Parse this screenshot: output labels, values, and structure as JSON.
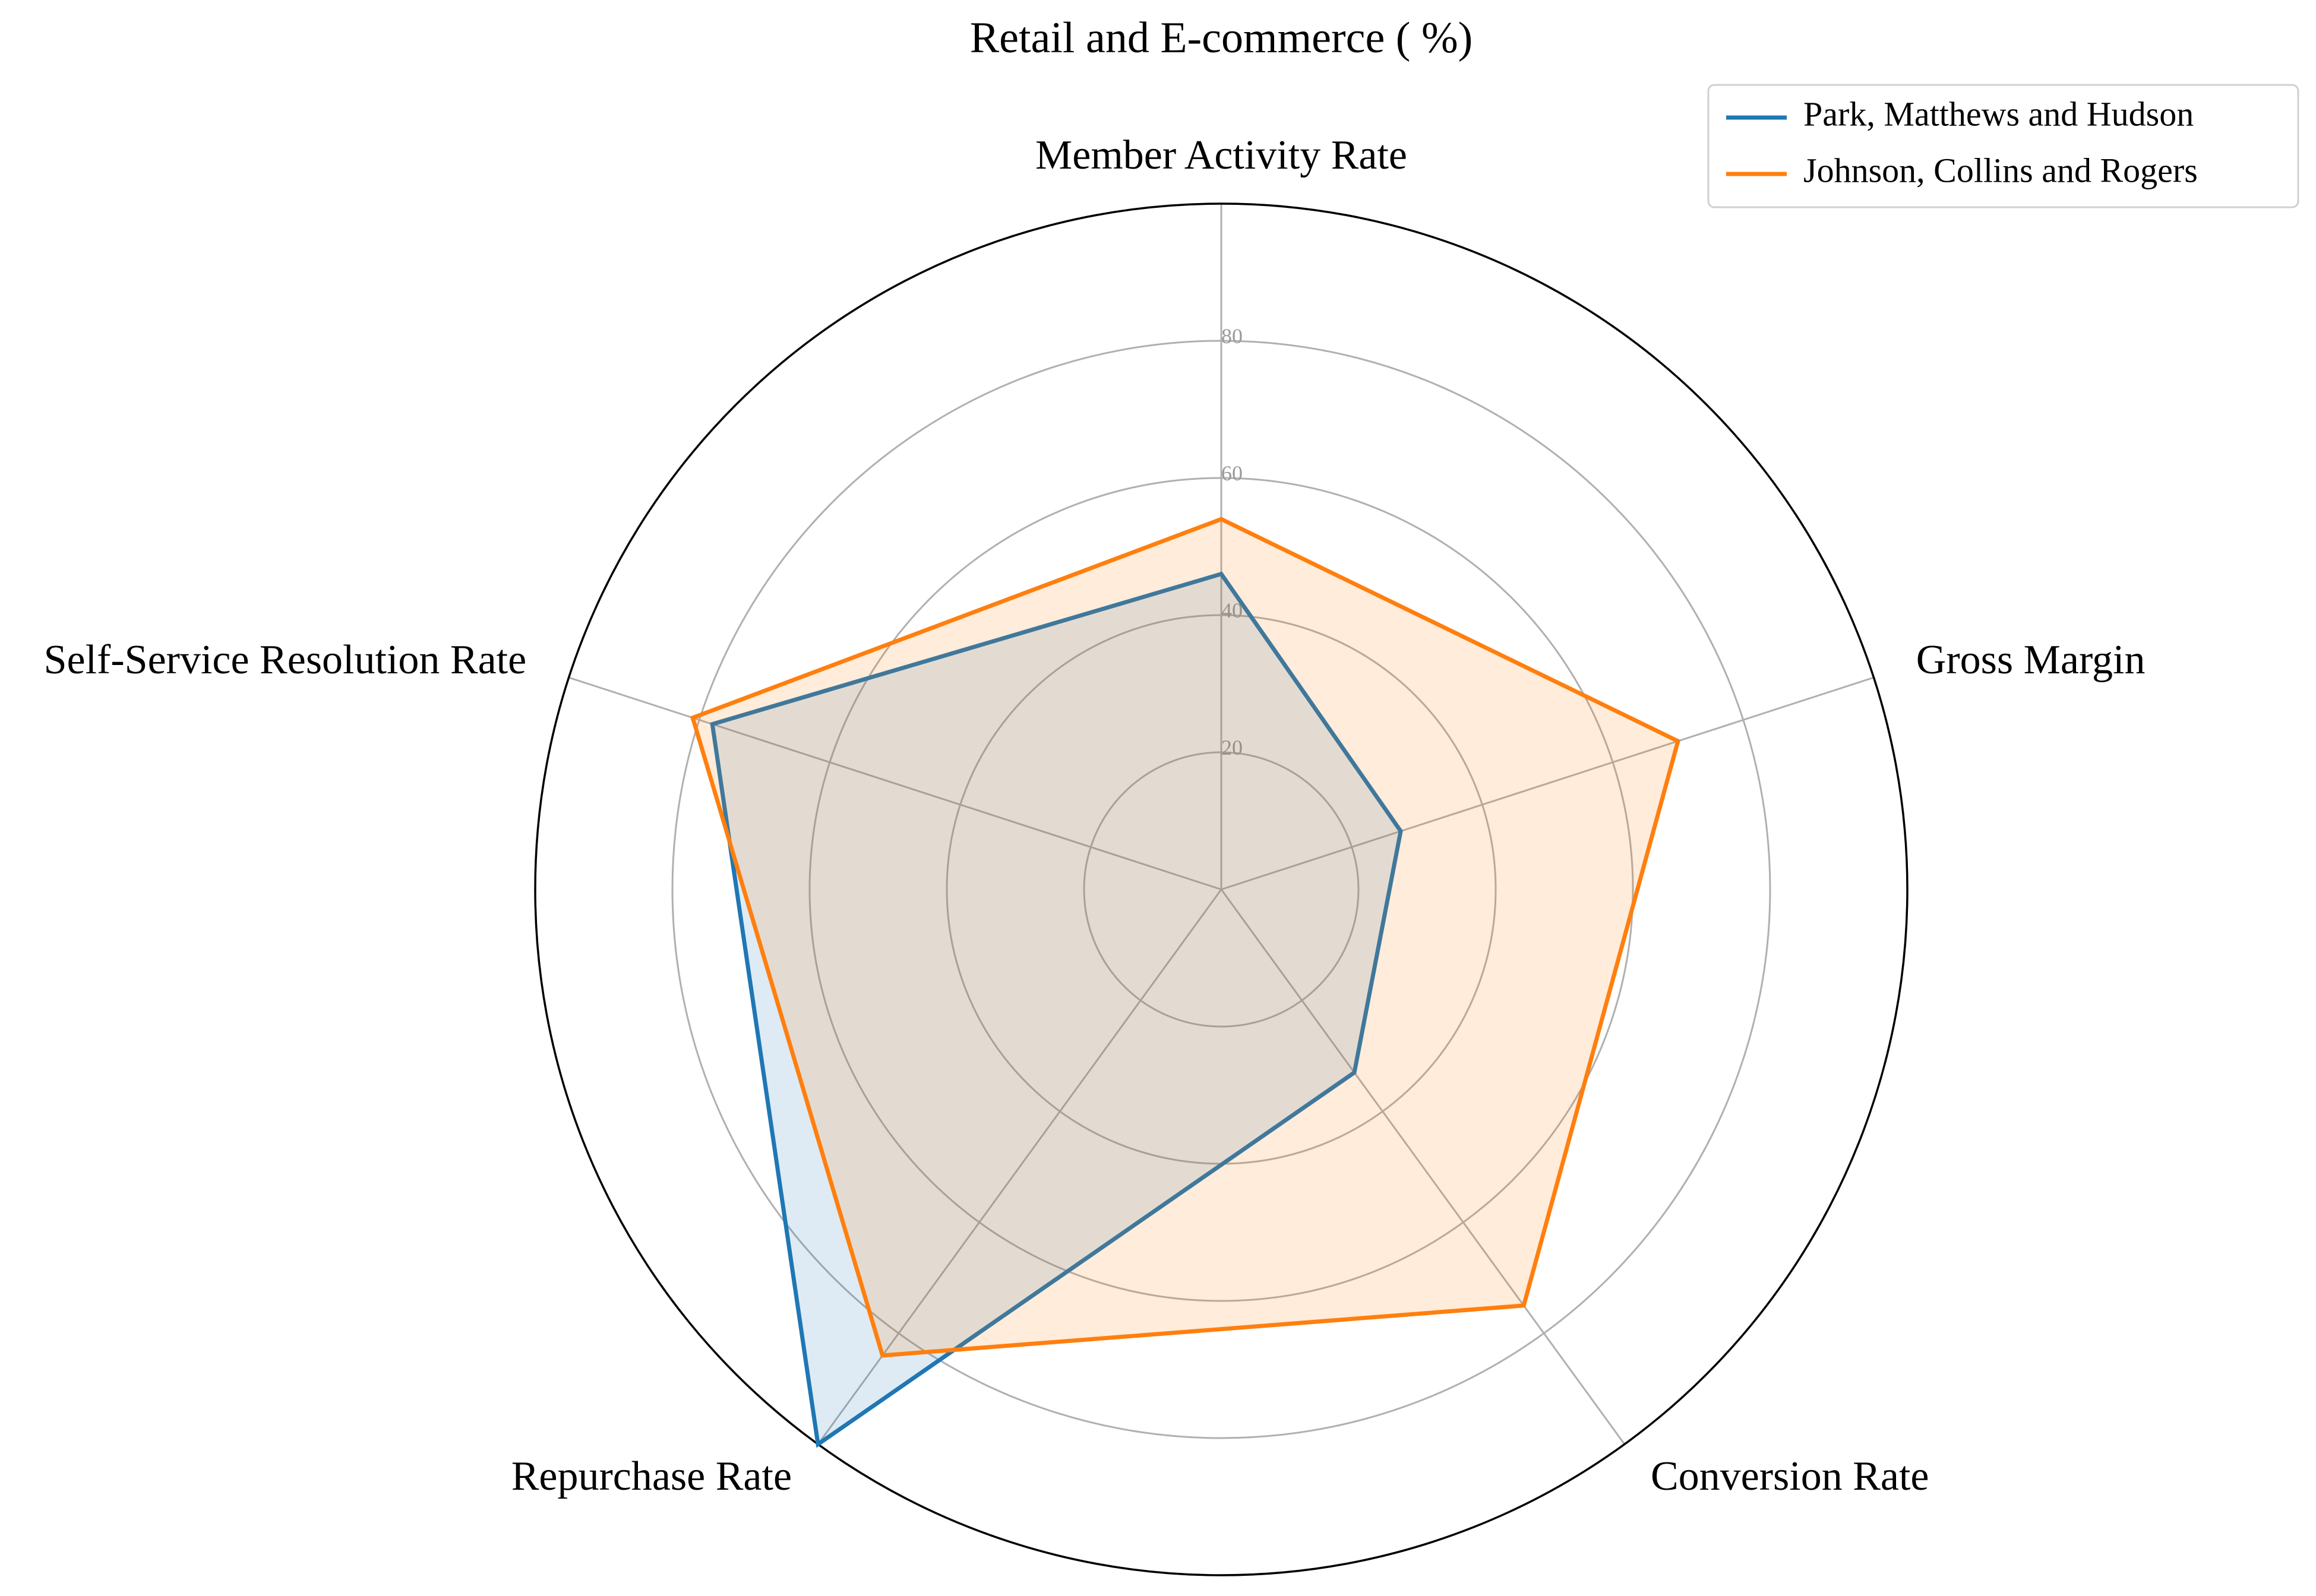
{
  "chart_data": {
    "type": "radar",
    "title": "Retail and E-commerce ( %)",
    "axes": [
      "Member Activity Rate",
      "Gross Margin",
      "Conversion Rate",
      "Repurchase Rate",
      "Self-Service Resolution Rate"
    ],
    "rlim": [
      0,
      100
    ],
    "r_ticks": [
      20,
      40,
      60,
      80
    ],
    "r_tick_labels": [
      "20",
      "40",
      "60",
      "80"
    ],
    "grid": true,
    "legend_position": "top-right",
    "series": [
      {
        "name": "Park, Matthews and Hudson",
        "color": "#1f77b4",
        "values": [
          46,
          27.5,
          33,
          100,
          78
        ]
      },
      {
        "name": "Johnson, Collins and Rogers",
        "color": "#ff7f0e",
        "values": [
          54,
          70,
          75,
          84,
          81
        ]
      }
    ]
  }
}
